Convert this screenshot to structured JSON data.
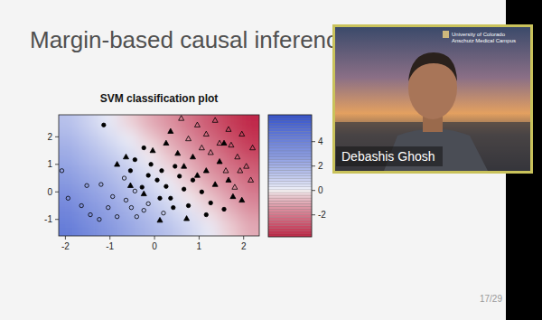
{
  "slide": {
    "title": "Margin-based causal inference",
    "page": "17/29"
  },
  "speaker": {
    "name": "Debashis Ghosh",
    "affiliation": [
      "University of Colorado",
      "Anschutz Medical Campus"
    ]
  },
  "chart_data": {
    "type": "scatter",
    "title": "SVM classification plot",
    "xlim": [
      -2.15,
      2.35
    ],
    "ylim": [
      -1.6,
      2.8
    ],
    "xticks": [
      -2,
      -1,
      0,
      1,
      2
    ],
    "yticks": [
      -1,
      0,
      1,
      2
    ],
    "series": [
      {
        "marker": "circle-open",
        "color": "#000000",
        "x": [
          -2.08,
          -1.94,
          -1.64,
          -1.44,
          -1.24,
          -1.2,
          -0.94,
          -0.64,
          -0.52,
          -0.4,
          -0.24,
          -0.14,
          -0.84,
          -0.68,
          -1.52,
          -1.04,
          0.2,
          -0.44
        ],
        "values": [
          0.77,
          -0.23,
          -0.5,
          -0.83,
          -1.0,
          0.27,
          -0.17,
          -0.3,
          -0.57,
          -0.9,
          -0.67,
          -0.43,
          -0.9,
          0.5,
          0.23,
          -0.57,
          -0.77,
          0.03
        ]
      },
      {
        "marker": "circle",
        "color": "#000000",
        "x": [
          -1.14,
          -0.44,
          -0.24,
          -0.08,
          0.06,
          0.16,
          0.26,
          0.36,
          0.46,
          0.56,
          0.66,
          0.76,
          0.86,
          -0.28,
          -0.14,
          1.06,
          1.26,
          -0.54,
          1.16,
          0.12,
          1.56,
          0.42
        ],
        "values": [
          2.43,
          1.17,
          1.6,
          1.0,
          0.43,
          0.77,
          0.2,
          -0.23,
          0.93,
          0.57,
          0.1,
          -0.5,
          0.43,
          0.17,
          0.6,
          0.0,
          -0.4,
          0.77,
          -0.83,
          -0.23,
          -0.63,
          -0.57
        ]
      },
      {
        "marker": "triangle",
        "color": "#000000",
        "x": [
          -0.84,
          -0.64,
          -0.54,
          -0.24,
          -0.04,
          0.26,
          0.36,
          0.52,
          0.66,
          0.86,
          0.96,
          1.16,
          1.36,
          1.46,
          1.66,
          1.76,
          1.96,
          0.12,
          0.72,
          1.56
        ],
        "values": [
          1.0,
          1.27,
          0.23,
          -0.07,
          1.5,
          1.77,
          2.2,
          1.4,
          0.93,
          1.27,
          0.6,
          0.77,
          0.27,
          1.1,
          0.43,
          -0.17,
          -0.3,
          -1.03,
          -0.97,
          1.77
        ]
      },
      {
        "marker": "triangle-open",
        "color": "#000000",
        "x": [
          0.6,
          0.76,
          0.96,
          1.16,
          1.36,
          1.46,
          1.66,
          1.72,
          1.86,
          1.96,
          2.06,
          2.16,
          1.92,
          1.26,
          1.06,
          2.2,
          1.6,
          1.8
        ],
        "values": [
          2.67,
          1.93,
          2.43,
          2.1,
          2.6,
          1.77,
          2.27,
          1.7,
          1.27,
          2.1,
          0.93,
          0.43,
          0.77,
          1.43,
          1.6,
          1.6,
          0.77,
          0.17
        ]
      }
    ],
    "heatmap_x": [
      -1.925,
      -1.475,
      -1.025,
      -0.575,
      -0.125,
      0.325,
      0.775,
      1.225,
      1.675,
      2.125
    ],
    "heatmap_y": [
      2.525,
      1.975,
      1.425,
      0.875,
      0.325,
      -0.225,
      -0.775,
      -1.325
    ],
    "heatmap_values": [
      [
        1.4,
        0.8,
        0.2,
        -0.4,
        -1.0,
        -1.5,
        -2.1,
        -2.7,
        -3.3,
        -3.9
      ],
      [
        1.8,
        1.2,
        0.6,
        0.1,
        -0.5,
        -1.1,
        -1.7,
        -2.3,
        -2.9,
        -3.5
      ],
      [
        2.2,
        1.6,
        1.0,
        0.5,
        -0.1,
        -0.7,
        -1.3,
        -1.9,
        -2.5,
        -3.1
      ],
      [
        2.6,
        2.0,
        1.5,
        0.9,
        0.3,
        -0.3,
        -0.9,
        -1.5,
        -2.1,
        -2.6
      ],
      [
        3.0,
        2.5,
        1.9,
        1.3,
        0.7,
        0.1,
        -0.5,
        -1.1,
        -1.6,
        -2.2
      ],
      [
        3.5,
        2.9,
        2.3,
        1.7,
        1.1,
        0.5,
        -0.1,
        -0.6,
        -1.2,
        -1.8
      ],
      [
        3.9,
        3.3,
        2.7,
        2.1,
        1.5,
        0.9,
        0.4,
        -0.2,
        -0.8,
        -1.4
      ],
      [
        4.3,
        3.7,
        3.1,
        2.5,
        1.9,
        1.4,
        0.8,
        0.2,
        -0.4,
        -1.0
      ]
    ],
    "colorbar_lim": [
      -3.8,
      6.2
    ],
    "colorbar_ticks": [
      4,
      2,
      0,
      -2
    ]
  }
}
